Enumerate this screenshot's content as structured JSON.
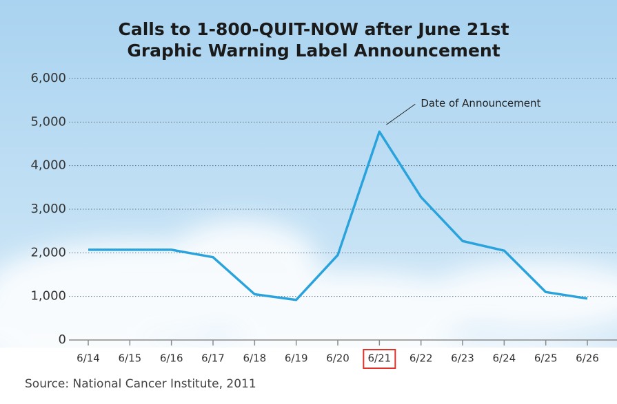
{
  "chart_data": {
    "type": "line",
    "title": [
      "Calls to 1-800-QUIT-NOW after June 21st",
      "Graphic Warning Label Announcement"
    ],
    "categories": [
      "6/14",
      "6/15",
      "6/16",
      "6/17",
      "6/18",
      "6/19",
      "6/20",
      "6/21",
      "6/22",
      "6/23",
      "6/24",
      "6/25",
      "6/26"
    ],
    "values": [
      2070,
      2070,
      2070,
      1900,
      1050,
      920,
      1950,
      4780,
      3280,
      2270,
      2050,
      1100,
      950
    ],
    "color": "#2aa3dc",
    "ylim": [
      0,
      6000
    ],
    "yticks": [
      0,
      {
        "value": 1000,
        "label": "1,000"
      },
      {
        "value": 2000,
        "label": "2,000"
      },
      {
        "value": 3000,
        "label": "3,000"
      },
      {
        "value": 4000,
        "label": "4,000"
      },
      {
        "value": 5000,
        "label": "5,000"
      },
      {
        "value": 6000,
        "label": "6,000"
      }
    ],
    "grid": true,
    "annotation": "Date of Announcement",
    "highlight_index": 7,
    "highlight_color": "#e0322b",
    "source": "Source: National Cancer Institute, 2011"
  }
}
